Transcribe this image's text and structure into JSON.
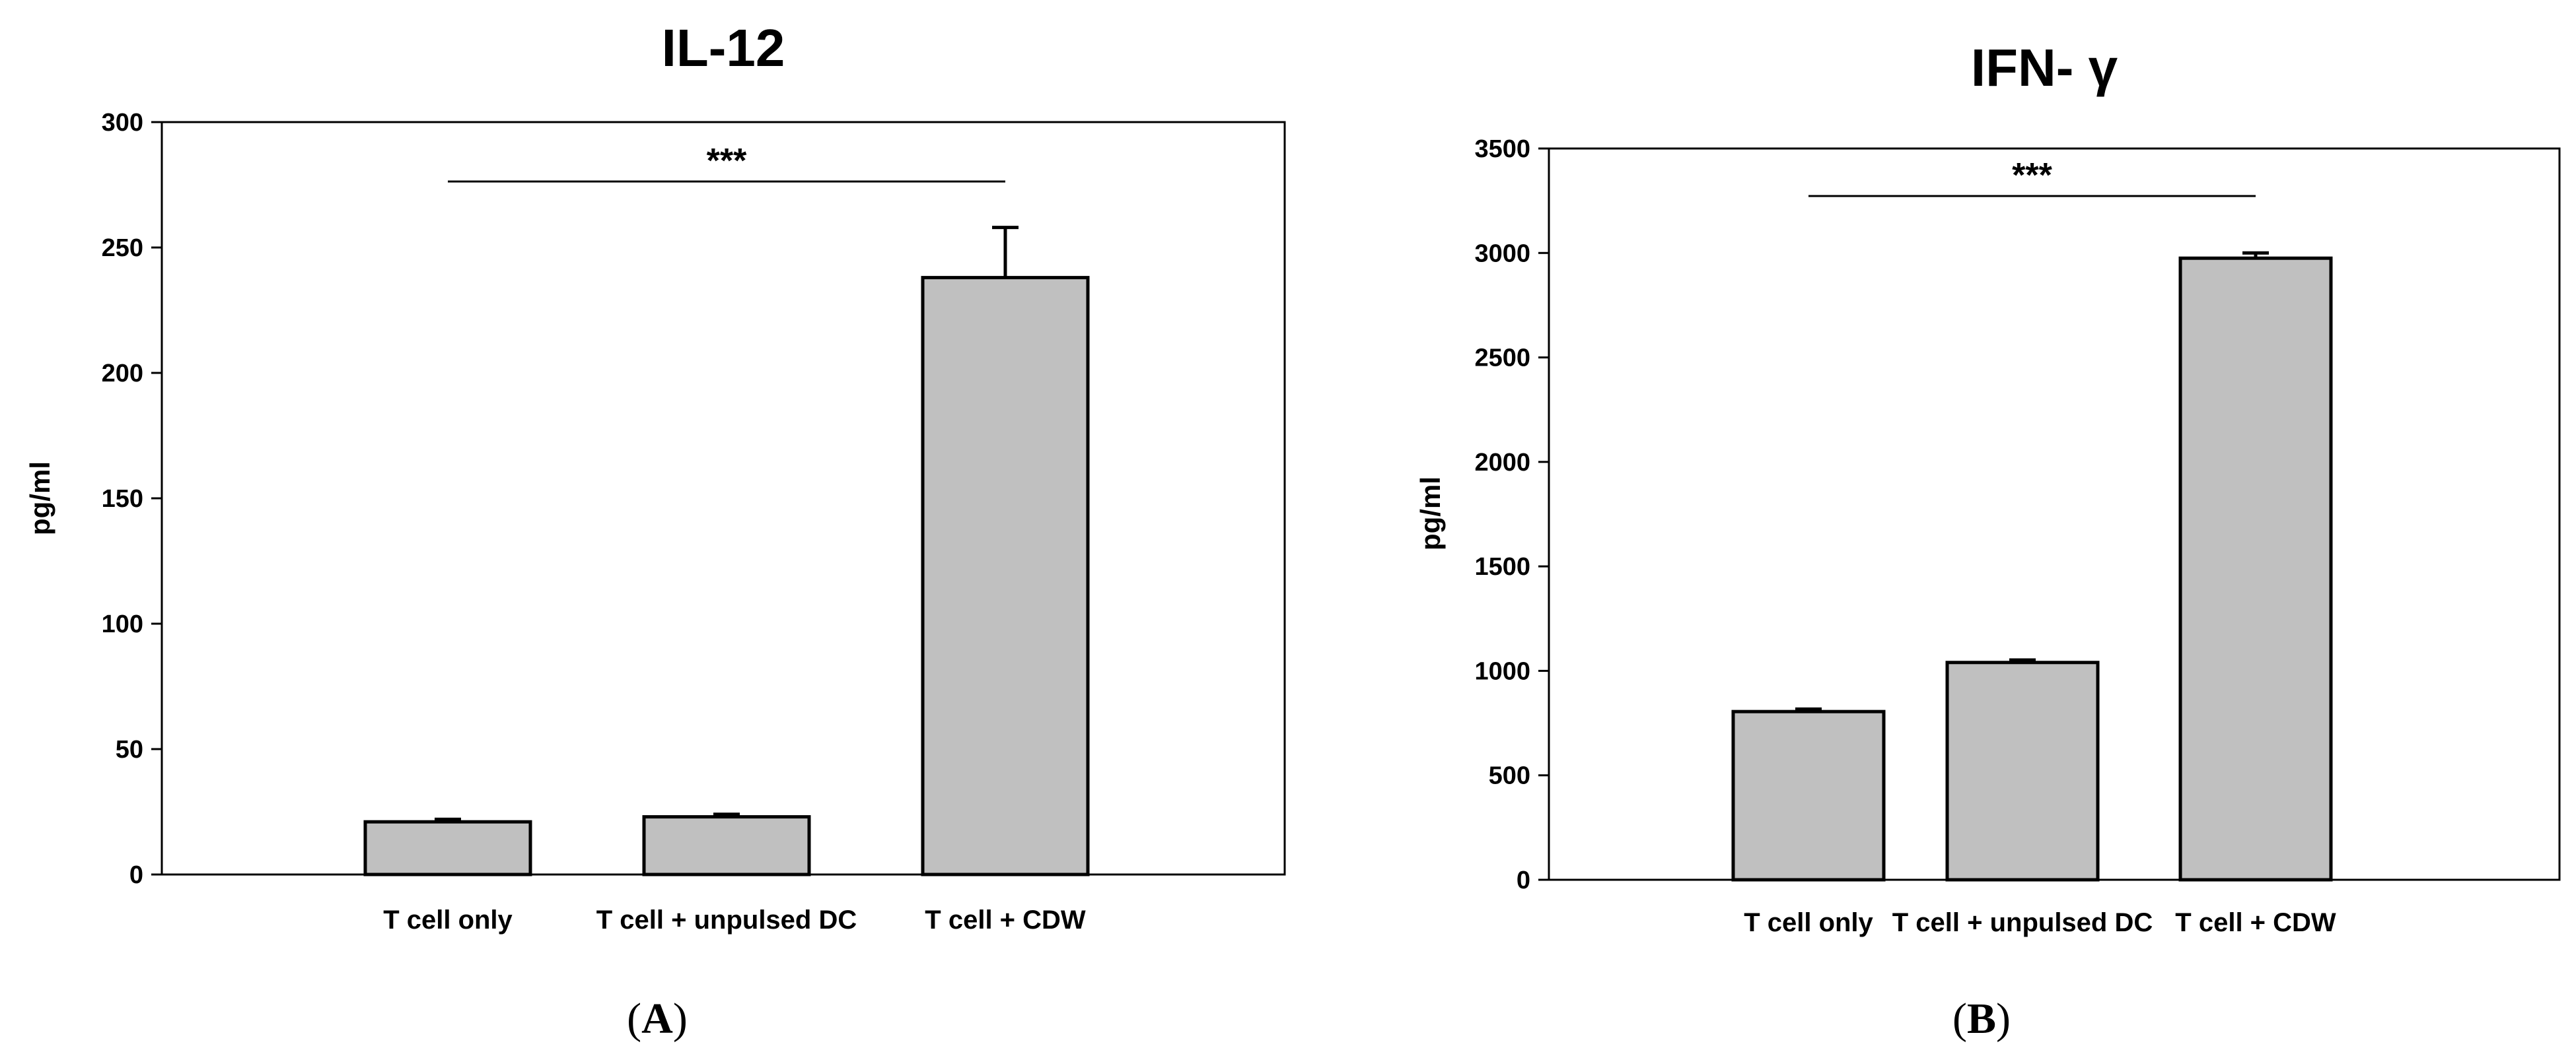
{
  "chart_data": [
    {
      "type": "bar",
      "title": "IL-12",
      "ylabel": "pg/ml",
      "xlabel": "",
      "ylim": [
        0,
        300
      ],
      "yticks": [
        0,
        50,
        100,
        150,
        200,
        250,
        300
      ],
      "categories": [
        "T cell only",
        "T cell + unpulsed DC",
        "T cell + CDW"
      ],
      "values": [
        21,
        23,
        238
      ],
      "errors": [
        1,
        1,
        20
      ],
      "bar_color": "#c0c0c0",
      "significance": {
        "label": "***",
        "from": "T cell only",
        "to": "T cell + CDW"
      },
      "panel_label": {
        "open": "(",
        "letter": "A",
        "close": ")"
      }
    },
    {
      "type": "bar",
      "title": "IFN- γ",
      "ylabel": "pg/ml",
      "xlabel": "",
      "ylim": [
        0,
        3500
      ],
      "yticks": [
        0,
        500,
        1000,
        1500,
        2000,
        2500,
        3000,
        3500
      ],
      "categories": [
        "T cell only",
        "T cell + unpulsed DC",
        "T cell + CDW"
      ],
      "values": [
        805,
        1040,
        2975
      ],
      "errors": [
        12,
        12,
        25
      ],
      "bar_color": "#c0c0c0",
      "significance": {
        "label": "***",
        "from": "T cell only",
        "to": "T cell + CDW"
      },
      "panel_label": {
        "open": "(",
        "letter": "B",
        "close": ")"
      }
    }
  ]
}
